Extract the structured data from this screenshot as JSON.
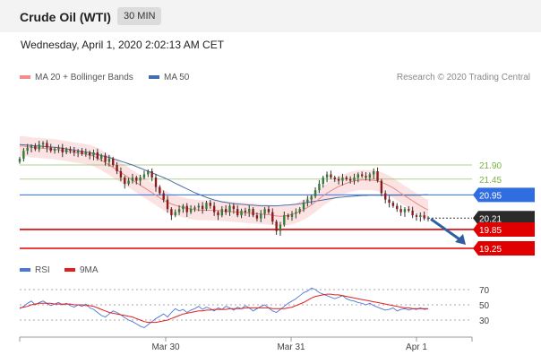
{
  "header": {
    "instrument": "Crude Oil (WTI)",
    "timeframe": "30 MIN"
  },
  "date": "Wednesday, April 1, 2020 2:02:13 AM CET",
  "legend": {
    "ma20": "MA 20 + Bollinger Bands",
    "ma50": "MA 50",
    "rsi": "RSI",
    "ma9": "9MA",
    "colors": {
      "ma20": "#f58c8c",
      "ma50": "#3e6fb0",
      "rsi": "#4a78d6",
      "ma9": "#e02020"
    }
  },
  "research": "Research © 2020 Trading Central",
  "chart_data": [
    {
      "type": "candlestick",
      "x_ticks": [
        "Mar 30",
        "Mar 31",
        "Apr 1"
      ],
      "y_range": [
        19.0,
        22.5
      ],
      "levels": [
        {
          "label": "21.90",
          "value": 21.9,
          "kind": "resistance",
          "color": "#7cb342"
        },
        {
          "label": "21.45",
          "value": 21.45,
          "kind": "resistance",
          "color": "#7cb342"
        },
        {
          "label": "20.95",
          "value": 20.95,
          "kind": "pivot",
          "color": "#2f6de1"
        },
        {
          "label": "20.21",
          "value": 20.21,
          "kind": "last",
          "color": "#333333"
        },
        {
          "label": "19.85",
          "value": 19.85,
          "kind": "support",
          "color": "#e00000"
        },
        {
          "label": "19.25",
          "value": 19.25,
          "kind": "support",
          "color": "#e00000"
        }
      ],
      "close": [
        22.1,
        22.35,
        22.45,
        22.5,
        22.4,
        22.55,
        22.6,
        22.45,
        22.35,
        22.4,
        22.45,
        22.3,
        22.4,
        22.35,
        22.3,
        22.35,
        22.25,
        22.3,
        22.2,
        22.3,
        22.1,
        22.2,
        22.0,
        22.1,
        21.9,
        21.7,
        21.5,
        21.3,
        21.4,
        21.5,
        21.4,
        21.5,
        21.6,
        21.7,
        21.5,
        21.2,
        21.0,
        20.8,
        20.5,
        20.3,
        20.4,
        20.5,
        20.6,
        20.4,
        20.5,
        20.55,
        20.6,
        20.5,
        20.7,
        20.6,
        20.4,
        20.3,
        20.5,
        20.4,
        20.6,
        20.5,
        20.3,
        20.45,
        20.4,
        20.5,
        20.3,
        20.2,
        20.35,
        20.5,
        20.4,
        20.1,
        19.8,
        20.0,
        20.3,
        20.25,
        20.35,
        20.4,
        20.5,
        20.7,
        20.8,
        20.9,
        21.1,
        21.3,
        21.5,
        21.6,
        21.5,
        21.45,
        21.4,
        21.5,
        21.45,
        21.4,
        21.5,
        21.6,
        21.55,
        21.5,
        21.6,
        21.7,
        21.4,
        21.0,
        20.8,
        20.7,
        20.6,
        20.5,
        20.4,
        20.5,
        20.45,
        20.3,
        20.25,
        20.3,
        20.2,
        20.21
      ],
      "ma20": [
        22.5,
        22.5,
        22.48,
        22.46,
        22.45,
        22.44,
        22.43,
        22.42,
        22.41,
        22.4,
        22.38,
        22.36,
        22.34,
        22.32,
        22.3,
        22.28,
        22.26,
        22.24,
        22.22,
        22.18,
        22.12,
        22.05,
        21.98,
        21.9,
        21.82,
        21.74,
        21.66,
        21.58,
        21.5,
        21.42,
        21.34,
        21.26,
        21.18,
        21.1,
        21.02,
        20.94,
        20.86,
        20.78,
        20.72,
        20.66,
        20.62,
        20.58,
        20.55,
        20.52,
        20.5,
        20.48,
        20.47,
        20.46,
        20.46,
        20.46,
        20.46,
        20.45,
        20.44,
        20.43,
        20.42,
        20.41,
        20.4,
        20.39,
        20.38,
        20.37,
        20.36,
        20.35,
        20.34,
        20.33,
        20.32,
        20.3,
        20.28,
        20.27,
        20.28,
        20.3,
        20.33,
        20.37,
        20.42,
        20.48,
        20.55,
        20.63,
        20.72,
        20.82,
        20.92,
        21.0,
        21.08,
        21.15,
        21.22,
        21.27,
        21.32,
        21.36,
        21.39,
        21.41,
        21.42,
        21.42,
        21.42,
        21.41,
        21.39,
        21.35,
        21.3,
        21.24,
        21.17,
        21.09,
        21.0,
        20.92,
        20.84,
        20.76,
        20.68,
        20.6,
        20.53,
        20.47
      ],
      "ma50": [
        22.55,
        22.54,
        22.53,
        22.52,
        22.51,
        22.5,
        22.49,
        22.48,
        22.47,
        22.46,
        22.45,
        22.43,
        22.41,
        22.39,
        22.37,
        22.35,
        22.33,
        22.31,
        22.29,
        22.26,
        22.23,
        22.2,
        22.17,
        22.14,
        22.1,
        22.06,
        22.02,
        21.98,
        21.94,
        21.9,
        21.85,
        21.8,
        21.75,
        21.7,
        21.65,
        21.6,
        21.55,
        21.5,
        21.44,
        21.38,
        21.32,
        21.26,
        21.2,
        21.14,
        21.08,
        21.02,
        20.97,
        20.92,
        20.87,
        20.83,
        20.79,
        20.76,
        20.73,
        20.71,
        20.69,
        20.67,
        20.66,
        20.65,
        20.64,
        20.63,
        20.62,
        20.61,
        20.6,
        20.6,
        20.6,
        20.6,
        20.6,
        20.61,
        20.62,
        20.63,
        20.64,
        20.65,
        20.67,
        20.69,
        20.71,
        20.73,
        20.75,
        20.77,
        20.79,
        20.81,
        20.83,
        20.85,
        20.87,
        20.88,
        20.89,
        20.9,
        20.91,
        20.92,
        20.93,
        20.93,
        20.94,
        20.94,
        20.94,
        20.94,
        20.94,
        20.94,
        20.94,
        20.94,
        20.94,
        20.94,
        20.94,
        20.94,
        20.94,
        20.94,
        20.95,
        20.95
      ],
      "forecast": {
        "from": 20.21,
        "to": 19.25
      }
    },
    {
      "type": "line",
      "x_ticks": [
        "Mar 30",
        "Mar 31",
        "Apr 1"
      ],
      "y_ticks": [
        "70",
        "50",
        "30"
      ],
      "y_range": [
        15,
        80
      ],
      "series": [
        {
          "name": "RSI",
          "values": [
            45,
            48,
            52,
            55,
            50,
            53,
            55,
            52,
            49,
            51,
            53,
            50,
            52,
            49,
            47,
            50,
            48,
            51,
            46,
            44,
            40,
            36,
            34,
            38,
            42,
            40,
            37,
            33,
            30,
            28,
            25,
            22,
            20,
            24,
            28,
            32,
            35,
            38,
            34,
            40,
            45,
            42,
            44,
            40,
            43,
            45,
            48,
            44,
            47,
            45,
            42,
            46,
            44,
            48,
            46,
            43,
            47,
            45,
            49,
            46,
            42,
            45,
            48,
            50,
            46,
            42,
            40,
            44,
            48,
            52,
            55,
            58,
            62,
            66,
            68,
            72,
            70,
            66,
            64,
            62,
            60,
            58,
            60,
            62,
            58,
            56,
            55,
            53,
            52,
            50,
            52,
            49,
            47,
            45,
            43,
            44,
            46,
            42,
            44,
            45,
            43,
            45,
            44,
            46,
            44,
            45
          ]
        },
        {
          "name": "9MA",
          "values": [
            46,
            47,
            48,
            50,
            51,
            52,
            52,
            52,
            52,
            51,
            51,
            51,
            51,
            51,
            50,
            50,
            50,
            49,
            49,
            48,
            46,
            44,
            42,
            40,
            39,
            38,
            37,
            36,
            35,
            34,
            32,
            30,
            28,
            27,
            27,
            27,
            28,
            29,
            30,
            32,
            34,
            36,
            38,
            39,
            40,
            41,
            42,
            42,
            43,
            43,
            44,
            44,
            44,
            44,
            45,
            45,
            45,
            45,
            46,
            46,
            46,
            46,
            46,
            46,
            46,
            45,
            45,
            45,
            45,
            46,
            47,
            49,
            51,
            53,
            56,
            59,
            61,
            62,
            63,
            64,
            64,
            63,
            63,
            62,
            61,
            60,
            59,
            58,
            57,
            56,
            55,
            54,
            53,
            52,
            51,
            50,
            49,
            48,
            47,
            46,
            46,
            45,
            45,
            45,
            45,
            45
          ]
        }
      ]
    }
  ]
}
